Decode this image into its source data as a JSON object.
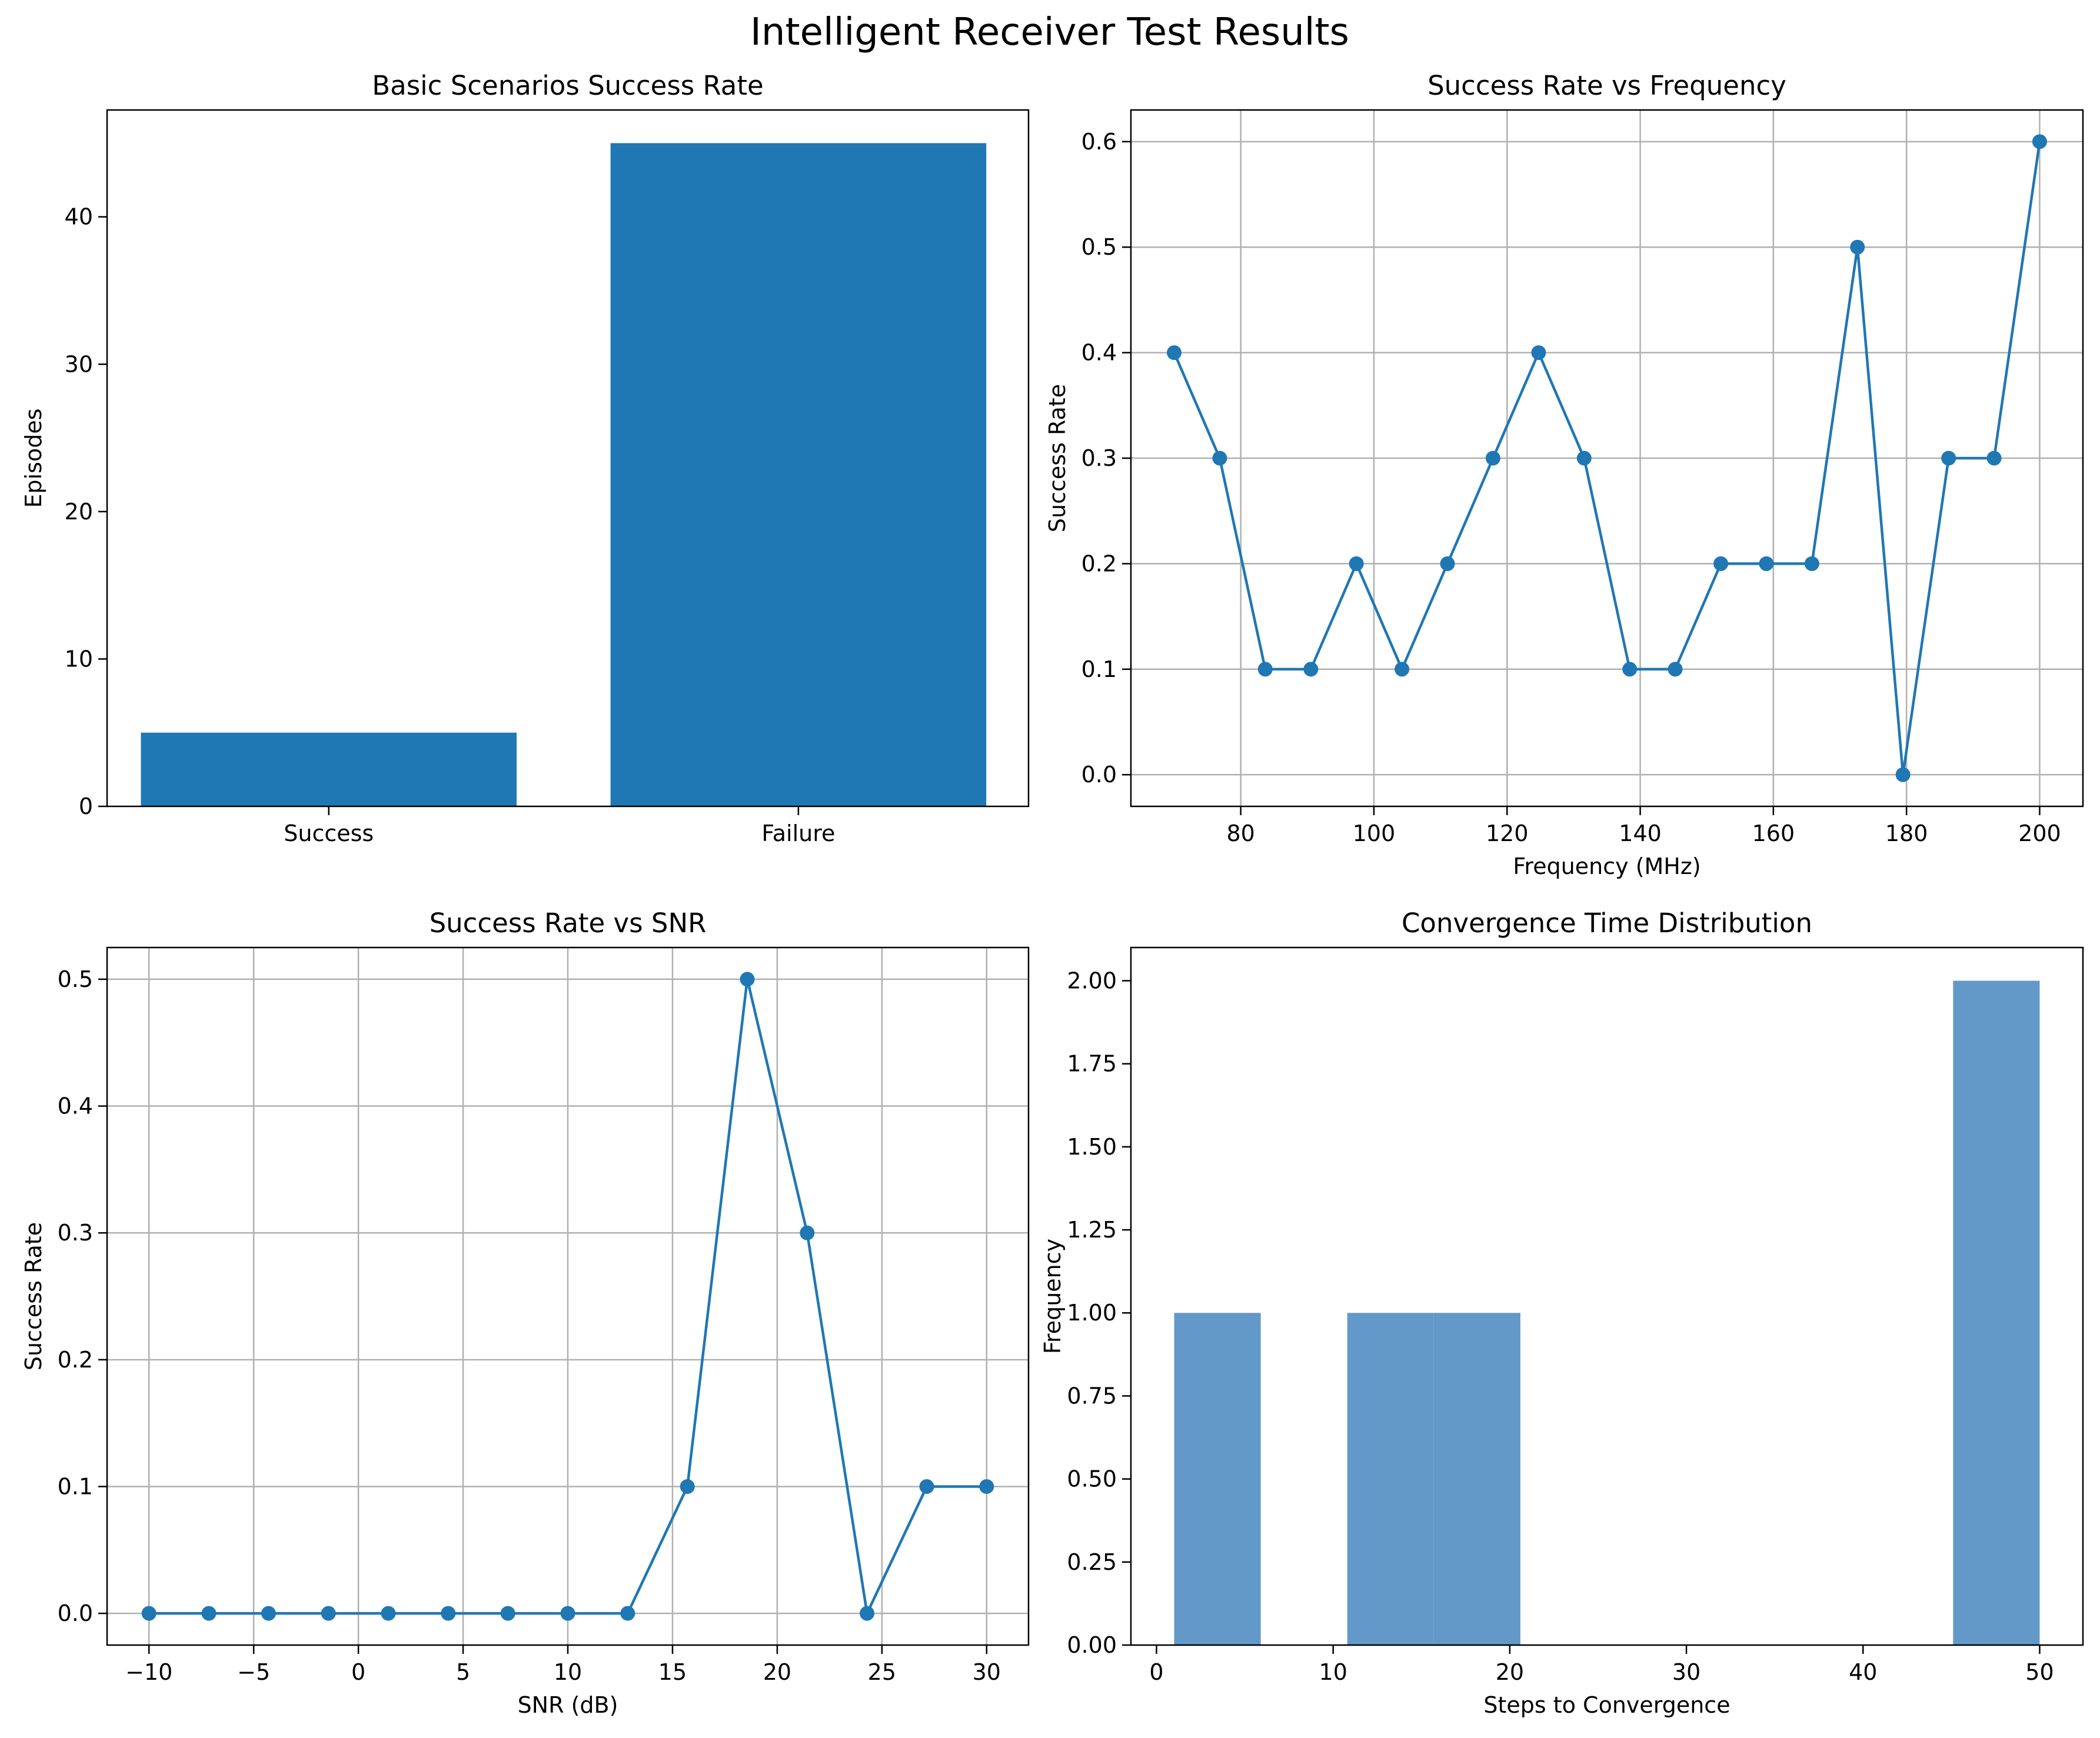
{
  "figure": {
    "title": "Intelligent Receiver Test Results",
    "colors": {
      "series": "#1f77b4",
      "hist": "#6399c9",
      "grid": "#b0b0b0",
      "axes": "#000000"
    }
  },
  "chart_data": [
    {
      "type": "bar",
      "title": "Basic Scenarios Success Rate",
      "xlabel": "",
      "ylabel": "Episodes",
      "categories": [
        "Success",
        "Failure"
      ],
      "values": [
        5,
        45
      ],
      "ylim": [
        0,
        47.25
      ],
      "yticks": [
        0,
        10,
        20,
        30,
        40
      ],
      "grid": false
    },
    {
      "type": "line",
      "title": "Success Rate vs Frequency",
      "xlabel": "Frequency (MHz)",
      "ylabel": "Success Rate",
      "x": [
        70,
        76.84,
        83.68,
        90.53,
        97.37,
        104.21,
        111.05,
        117.89,
        124.74,
        131.58,
        138.42,
        145.26,
        152.11,
        158.95,
        165.79,
        172.63,
        179.47,
        186.32,
        193.16,
        200
      ],
      "y": [
        0.4,
        0.3,
        0.1,
        0.1,
        0.2,
        0.1,
        0.2,
        0.3,
        0.4,
        0.3,
        0.1,
        0.1,
        0.2,
        0.2,
        0.2,
        0.5,
        0.0,
        0.3,
        0.3,
        0.6
      ],
      "xlim": [
        63.5,
        206.5
      ],
      "ylim": [
        -0.03,
        0.63
      ],
      "xticks": [
        80,
        100,
        120,
        140,
        160,
        180,
        200
      ],
      "yticks": [
        0.0,
        0.1,
        0.2,
        0.3,
        0.4,
        0.5,
        0.6
      ],
      "ytick_labels": [
        "0.0",
        "0.1",
        "0.2",
        "0.3",
        "0.4",
        "0.5",
        "0.6"
      ],
      "grid": true
    },
    {
      "type": "line",
      "title": "Success Rate vs SNR",
      "xlabel": "SNR (dB)",
      "ylabel": "Success Rate",
      "x": [
        -10,
        -7.14,
        -4.29,
        -1.43,
        1.43,
        4.29,
        7.14,
        10,
        12.86,
        15.71,
        18.57,
        21.43,
        24.29,
        27.14,
        30
      ],
      "y": [
        0.0,
        0.0,
        0.0,
        0.0,
        0.0,
        0.0,
        0.0,
        0.0,
        0.0,
        0.1,
        0.5,
        0.3,
        0.0,
        0.1,
        0.1
      ],
      "xlim": [
        -12,
        32
      ],
      "ylim": [
        -0.025,
        0.525
      ],
      "xticks": [
        -10,
        -5,
        0,
        5,
        10,
        15,
        20,
        25,
        30
      ],
      "xtick_labels": [
        "−10",
        "−5",
        "0",
        "5",
        "10",
        "15",
        "20",
        "25",
        "30"
      ],
      "yticks": [
        0.0,
        0.1,
        0.2,
        0.3,
        0.4,
        0.5
      ],
      "ytick_labels": [
        "0.0",
        "0.1",
        "0.2",
        "0.3",
        "0.4",
        "0.5"
      ],
      "grid": true
    },
    {
      "type": "bar",
      "title": "Convergence Time Distribution",
      "xlabel": "Steps to Convergence",
      "ylabel": "Frequency",
      "bins": [
        [
          1,
          5.9,
          1
        ],
        [
          5.9,
          10.8,
          0
        ],
        [
          10.8,
          15.7,
          1
        ],
        [
          15.7,
          20.6,
          1
        ],
        [
          20.6,
          25.5,
          0
        ],
        [
          25.5,
          30.4,
          0
        ],
        [
          30.4,
          35.3,
          0
        ],
        [
          35.3,
          40.2,
          0
        ],
        [
          40.2,
          45.1,
          0
        ],
        [
          45.1,
          50,
          2
        ]
      ],
      "xlim": [
        -1.45,
        52.45
      ],
      "ylim": [
        0,
        2.1
      ],
      "xticks": [
        0,
        10,
        20,
        30,
        40,
        50
      ],
      "yticks": [
        0,
        0.25,
        0.5,
        0.75,
        1.0,
        1.25,
        1.5,
        1.75,
        2.0
      ],
      "ytick_labels": [
        "0.00",
        "0.25",
        "0.50",
        "0.75",
        "1.00",
        "1.25",
        "1.50",
        "1.75",
        "2.00"
      ],
      "grid": false
    }
  ]
}
